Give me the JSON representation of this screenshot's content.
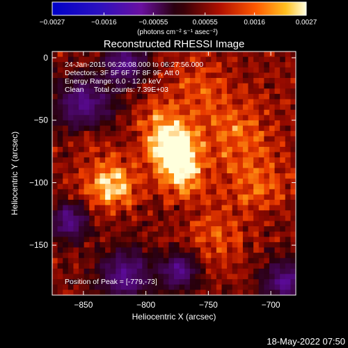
{
  "chart_data": {
    "type": "heatmap",
    "title": "Reconstructed RHESSI Image",
    "xlabel": "Heliocentric X (arcsec)",
    "ylabel": "Heliocentric Y (arcsec)",
    "xlim": [
      -875,
      -680
    ],
    "ylim": [
      -190,
      5
    ],
    "x_ticks": [
      -850,
      -800,
      -750,
      -700
    ],
    "y_ticks": [
      0,
      -50,
      -100,
      -150
    ],
    "x_tick_labels": [
      "−850",
      "−800",
      "−750",
      "−700"
    ],
    "y_tick_labels": [
      "0",
      "−50",
      "−100",
      "−150"
    ],
    "colorbar": {
      "range": [
        -0.0027,
        0.0027
      ],
      "tick_values": [
        -0.0027,
        -0.0016,
        -0.00055,
        0.00055,
        0.0016,
        0.0027
      ],
      "tick_labels": [
        "−0.0027",
        "−0.0016",
        "−0.00055",
        "0.00055",
        "0.0016",
        "0.0027"
      ],
      "unit_label": "(photons cm⁻² s⁻¹ asec⁻²)"
    },
    "annotations": [
      "24-Jan-2015 06:26:08.000 to 06:27:56.000",
      "Detectors: 3F 5F 6F 7F 8F 9F, Att 0",
      "Energy Range: 6.0 - 12.0 keV",
      "Clean     Total counts: 7.39E+03"
    ],
    "peak_label": "Position of Peak = [-779,-73]",
    "peak": {
      "x": -779,
      "y": -73
    },
    "grid": false
  },
  "footer": {
    "timestamp": "18-May-2022 07:50"
  }
}
